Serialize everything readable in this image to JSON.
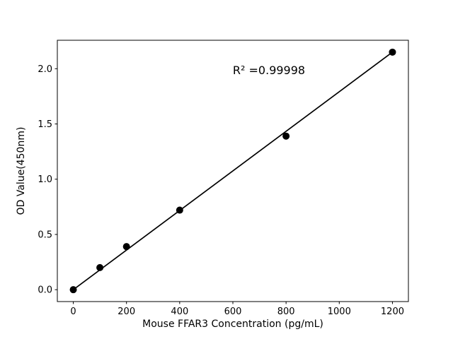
{
  "chart_data": {
    "type": "scatter",
    "title": "",
    "xlabel": "Mouse FFAR3 Concentration (pg/mL)",
    "ylabel": "OD Value(450nm)",
    "annotation": "R² =0.99998",
    "x": [
      0,
      100,
      200,
      400,
      800,
      1200
    ],
    "y": [
      0.0,
      0.2,
      0.39,
      0.72,
      1.39,
      2.15
    ],
    "trendline": {
      "x": [
        0,
        1200
      ],
      "y": [
        0.0,
        2.15
      ]
    },
    "x_tick_labels": [
      "0",
      "200",
      "400",
      "600",
      "800",
      "1000",
      "1200"
    ],
    "x_tick_values": [
      0,
      200,
      400,
      600,
      800,
      1000,
      1200
    ],
    "y_tick_labels": [
      "0.0",
      "0.5",
      "1.0",
      "1.5",
      "2.0"
    ],
    "y_tick_values": [
      0.0,
      0.5,
      1.0,
      1.5,
      2.0
    ],
    "xlim": [
      -60,
      1260
    ],
    "ylim": [
      -0.1075,
      2.2575
    ],
    "grid": false,
    "legend": "none",
    "marker_color": "#000000",
    "line_color": "#000000",
    "axis_color": "#000000",
    "background": "#ffffff"
  }
}
